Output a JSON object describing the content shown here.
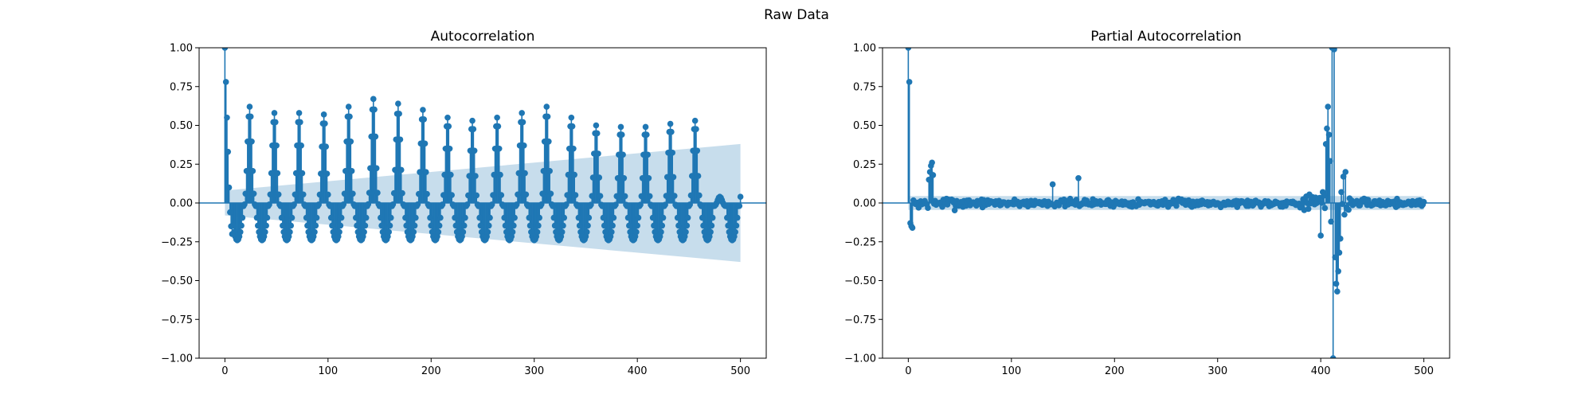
{
  "figure": {
    "suptitle": "Raw Data"
  },
  "style": {
    "series_color": "#1f77b4",
    "band_color": "#1f77b4",
    "band_opacity": 0.25
  },
  "chart_data": [
    {
      "type": "stem",
      "title": "Autocorrelation",
      "xlabel": "",
      "ylabel": "",
      "xlim": [
        -25,
        525
      ],
      "ylim": [
        -1.0,
        1.0
      ],
      "xticks": [
        0,
        100,
        200,
        300,
        400,
        500
      ],
      "yticks": [
        -1.0,
        -0.75,
        -0.5,
        -0.25,
        0.0,
        0.25,
        0.5,
        0.75,
        1.0
      ],
      "ytick_labels": [
        "−1.00",
        "−0.75",
        "−0.50",
        "−0.25",
        "0.00",
        "0.25",
        "0.50",
        "0.75",
        "1.00"
      ],
      "grid": false,
      "nlags": 500,
      "season_period": 24,
      "lead_values": [
        1.0,
        0.78,
        0.55,
        0.33,
        0.1,
        -0.06,
        -0.15,
        -0.2
      ],
      "season_peak_values": [
        0.7,
        0.62,
        0.58,
        0.58,
        0.57,
        0.62,
        0.67,
        0.64,
        0.6,
        0.55,
        0.53,
        0.55,
        0.58,
        0.62,
        0.55,
        0.5,
        0.49,
        0.49,
        0.51,
        0.53,
        0.04
      ],
      "trough_value": -0.24,
      "confidence_band": {
        "start": [
          0,
          0.08,
          -0.08
        ],
        "end": [
          500,
          0.38,
          -0.38
        ]
      }
    },
    {
      "type": "stem",
      "title": "Partial Autocorrelation",
      "xlabel": "",
      "ylabel": "",
      "xlim": [
        -25,
        525
      ],
      "ylim": [
        -1.0,
        1.0
      ],
      "xticks": [
        0,
        100,
        200,
        300,
        400,
        500
      ],
      "yticks": [
        -1.0,
        -0.75,
        -0.5,
        -0.25,
        0.0,
        0.25,
        0.5,
        0.75,
        1.0
      ],
      "ytick_labels": [
        "−1.00",
        "−0.75",
        "−0.50",
        "−0.25",
        "0.00",
        "0.25",
        "0.50",
        "0.75",
        "1.00"
      ],
      "grid": false,
      "nlags": 500,
      "notable_values": [
        [
          0,
          1.0
        ],
        [
          1,
          0.78
        ],
        [
          2,
          -0.13
        ],
        [
          3,
          -0.15
        ],
        [
          4,
          -0.16
        ],
        [
          20,
          0.15
        ],
        [
          21,
          0.2
        ],
        [
          22,
          0.24
        ],
        [
          23,
          0.26
        ],
        [
          24,
          0.18
        ],
        [
          140,
          0.12
        ],
        [
          165,
          0.16
        ],
        [
          400,
          -0.21
        ],
        [
          402,
          0.07
        ],
        [
          405,
          0.38
        ],
        [
          406,
          0.48
        ],
        [
          407,
          0.62
        ],
        [
          408,
          0.44
        ],
        [
          409,
          0.27
        ],
        [
          410,
          -0.12
        ],
        [
          411,
          1.0
        ],
        [
          412,
          -1.0
        ],
        [
          413,
          0.99
        ],
        [
          414,
          -0.35
        ],
        [
          415,
          -0.52
        ],
        [
          416,
          -0.57
        ],
        [
          417,
          -0.44
        ],
        [
          418,
          -0.32
        ],
        [
          419,
          -0.23
        ],
        [
          420,
          0.07
        ],
        [
          422,
          0.17
        ],
        [
          424,
          0.2
        ],
        [
          426,
          -0.04
        ]
      ],
      "confidence_band": {
        "start": [
          0,
          0.045,
          -0.045
        ],
        "end": [
          500,
          0.045,
          -0.045
        ]
      }
    }
  ]
}
